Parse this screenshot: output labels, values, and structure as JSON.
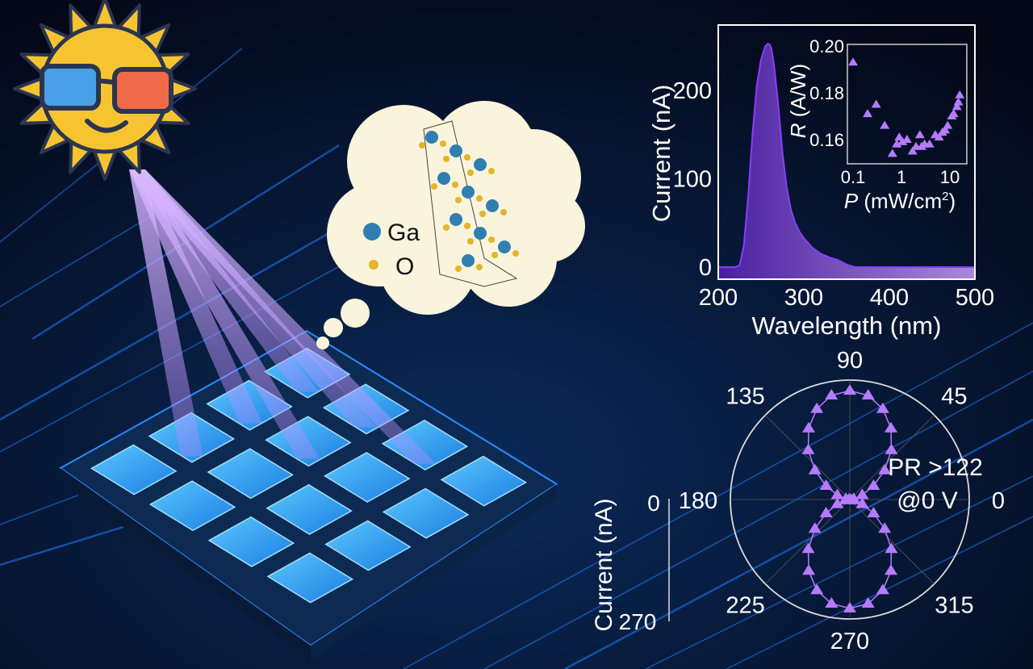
{
  "colors": {
    "background": "#040a1c",
    "circuit": "#1e7bff",
    "pad": "#2aa8ff",
    "beam": "#c9a2ff",
    "series": "#b57bff",
    "sun": "#f7c431",
    "cloud": "#fbf4dc",
    "ga_atom": "#2f7fb0",
    "o_atom": "#e3b52a"
  },
  "legend": {
    "ga_label": "Ga",
    "o_label": "O"
  },
  "chart_data": [
    {
      "type": "area",
      "xlabel": "Wavelength (nm)",
      "ylabel": "Current (nA)",
      "xlim": [
        200,
        500
      ],
      "ylim": [
        -12,
        260
      ],
      "xticks": [
        "200",
        "300",
        "400",
        "500"
      ],
      "yticks": [
        "0",
        "100",
        "200"
      ],
      "x": [
        200,
        210,
        220,
        225,
        230,
        235,
        240,
        245,
        250,
        255,
        258,
        260,
        262,
        265,
        270,
        275,
        280,
        285,
        290,
        295,
        300,
        310,
        320,
        330,
        340,
        350,
        360,
        400,
        450,
        500
      ],
      "y": [
        0,
        0,
        0,
        2,
        25,
        80,
        150,
        205,
        235,
        250,
        253,
        252,
        248,
        230,
        185,
        130,
        90,
        65,
        50,
        40,
        33,
        22,
        15,
        11,
        8,
        3,
        0,
        0,
        0,
        0
      ],
      "grid": false
    },
    {
      "type": "scatter",
      "role": "inset",
      "xlabel_italic": "P",
      "xlabel_unit": " (mW/cm",
      "xlabel_sup": "2",
      "xlabel_close": ")",
      "ylabel_italic": "R",
      "ylabel_unit": " (A/W)",
      "xscale": "log",
      "xlim": [
        0.09,
        20
      ],
      "ylim": [
        0.15,
        0.2
      ],
      "xticks": [
        "0.1",
        "1",
        "10"
      ],
      "yticks": [
        "0.16",
        "0.18",
        "0.20"
      ],
      "marker": "triangle",
      "x": [
        0.1,
        0.2,
        0.3,
        0.45,
        0.65,
        0.8,
        0.9,
        1.05,
        1.3,
        1.7,
        2.0,
        2.4,
        2.6,
        3.0,
        3.8,
        5.0,
        6.0,
        7.0,
        8.0,
        9.0,
        11,
        12,
        14,
        15,
        16
      ],
      "y": [
        0.193,
        0.171,
        0.175,
        0.166,
        0.154,
        0.158,
        0.161,
        0.159,
        0.16,
        0.155,
        0.157,
        0.162,
        0.157,
        0.158,
        0.158,
        0.162,
        0.161,
        0.163,
        0.164,
        0.166,
        0.17,
        0.171,
        0.174,
        0.176,
        0.179
      ]
    },
    {
      "type": "polar",
      "rlabel": "Current (nA)",
      "rlim": [
        0,
        270
      ],
      "rticks": [
        "0",
        "270"
      ],
      "angle_ticks": [
        "0",
        "45",
        "90",
        "135",
        "180",
        "225",
        "270",
        "315"
      ],
      "annotation_line1": "PR >122",
      "annotation_line2": "@0 V",
      "marker": "triangle",
      "angles": [
        0,
        10,
        20,
        30,
        40,
        50,
        60,
        70,
        80,
        90,
        100,
        110,
        120,
        130,
        140,
        150,
        160,
        170,
        180,
        190,
        200,
        210,
        220,
        230,
        240,
        250,
        260,
        270,
        280,
        290,
        300,
        310,
        320,
        330,
        340,
        350
      ],
      "values": [
        2,
        9,
        30,
        62,
        103,
        146,
        186,
        218,
        239,
        246,
        239,
        218,
        186,
        146,
        103,
        62,
        30,
        9,
        2,
        9,
        30,
        62,
        103,
        146,
        186,
        218,
        239,
        246,
        239,
        218,
        186,
        146,
        103,
        62,
        30,
        9
      ]
    }
  ]
}
